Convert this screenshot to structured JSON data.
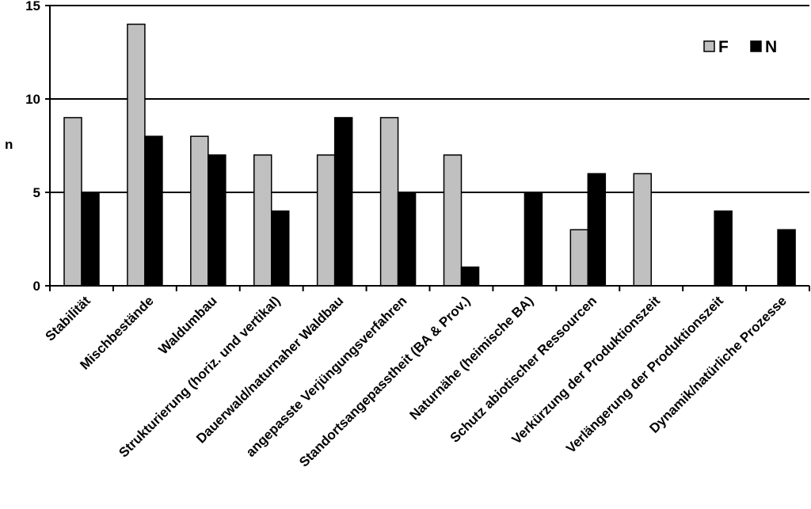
{
  "chart_data": {
    "type": "bar",
    "ylabel": "n",
    "ylim": [
      0,
      15
    ],
    "yticks": [
      "0",
      "5",
      "10",
      "15"
    ],
    "grid": "horizontal",
    "legend_position": "top-right",
    "categories": [
      "Stabilität",
      "Mischbestände",
      "Waldumbau",
      "Strukturierung (horiz. und vertikal)",
      "Dauerwald/naturnaher Waldbau",
      "angepasste Verjüngungsverfahren",
      "Standortsangepasstheit (BA & Prov.)",
      "Naturnähe (heimische BA)",
      "Schutz abiotischer Ressourcen",
      "Verkürzung der Produktionszeit",
      "Verlängerung der Produktionszeit",
      "Dynamik/natürliche Prozesse"
    ],
    "series": [
      {
        "name": "F",
        "color": "#c0c0c0",
        "values": [
          9,
          14,
          8,
          7,
          7,
          9,
          7,
          0,
          3,
          6,
          0,
          0
        ]
      },
      {
        "name": "N",
        "color": "#000000",
        "values": [
          5,
          8,
          7,
          4,
          9,
          5,
          1,
          5,
          6,
          0,
          4,
          3
        ]
      }
    ]
  }
}
